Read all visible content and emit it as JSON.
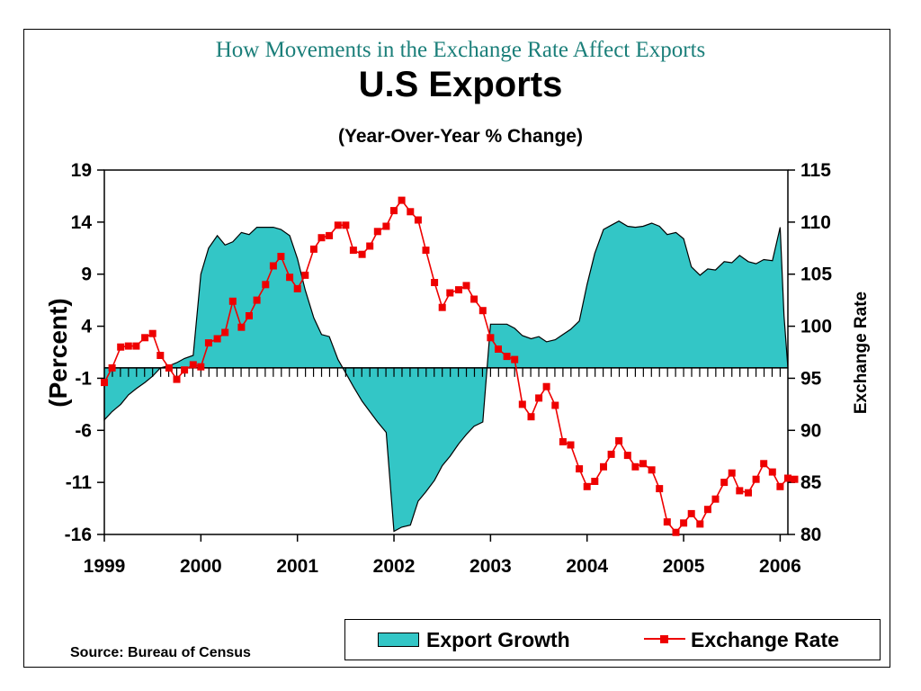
{
  "chart_data": {
    "type": "area+line",
    "supertitle": "How Movements in the Exchange Rate Affect Exports",
    "title": "U.S Exports",
    "subtitle": "(Year-Over-Year % Change)",
    "ylabel_left": "(Percent)",
    "ylabel_right": "Exchange Rate",
    "source": "Source: Bureau of Census",
    "x_ticks": [
      "1999",
      "2000",
      "2001",
      "2002",
      "2003",
      "2004",
      "2005",
      "2006"
    ],
    "xlim": [
      1999.0,
      2006.08
    ],
    "ylim_left": [
      -16,
      19
    ],
    "ylim_right": [
      80,
      115
    ],
    "y_ticks_left": [
      "19",
      "14",
      "9",
      "4",
      "-1",
      "-6",
      "-11",
      "-16"
    ],
    "y_ticks_right": [
      "115",
      "110",
      "105",
      "100",
      "95",
      "90",
      "85",
      "80"
    ],
    "grid": false,
    "legend_position": "bottom-right",
    "colors": {
      "export_fill": "#33c6c6",
      "exchange_line": "#ee0000",
      "axis": "#000000"
    },
    "series": [
      {
        "name": "Export Growth",
        "axis": "left",
        "kind": "area",
        "x": [
          1999.0,
          1999.08,
          1999.17,
          1999.25,
          1999.33,
          1999.42,
          1999.5,
          1999.58,
          1999.67,
          1999.75,
          1999.83,
          1999.92,
          2000.0,
          2000.08,
          2000.17,
          2000.25,
          2000.33,
          2000.42,
          2000.5,
          2000.58,
          2000.67,
          2000.75,
          2000.83,
          2000.92,
          2001.0,
          2001.08,
          2001.17,
          2001.25,
          2001.33,
          2001.42,
          2001.5,
          2001.58,
          2001.67,
          2001.75,
          2001.83,
          2001.92,
          2002.0,
          2002.08,
          2002.17,
          2002.25,
          2002.33,
          2002.42,
          2002.5,
          2002.58,
          2002.67,
          2002.75,
          2002.83,
          2002.92,
          2003.0,
          2003.08,
          2003.17,
          2003.25,
          2003.33,
          2003.42,
          2003.5,
          2003.58,
          2003.67,
          2003.75,
          2003.83,
          2003.92,
          2004.0,
          2004.08,
          2004.17,
          2004.25,
          2004.33,
          2004.42,
          2004.5,
          2004.58,
          2004.67,
          2004.75,
          2004.83,
          2004.92,
          2005.0,
          2005.08,
          2005.17,
          2005.25,
          2005.33,
          2005.42,
          2005.5,
          2005.58,
          2005.67,
          2005.75,
          2005.83,
          2005.92,
          2006.0,
          2006.04,
          2006.08
        ],
        "values": [
          -5.0,
          -4.2,
          -3.5,
          -2.6,
          -2.0,
          -1.4,
          -0.8,
          0.0,
          0.2,
          0.5,
          0.9,
          1.2,
          9.0,
          11.5,
          12.7,
          11.8,
          12.1,
          13.0,
          12.8,
          13.5,
          13.5,
          13.5,
          13.3,
          12.7,
          10.5,
          7.5,
          4.8,
          3.2,
          3.0,
          0.8,
          -0.5,
          -1.8,
          -3.2,
          -4.2,
          -5.2,
          -6.2,
          -15.7,
          -15.3,
          -15.1,
          -12.8,
          -11.9,
          -10.8,
          -9.4,
          -8.5,
          -7.3,
          -6.4,
          -5.6,
          -5.2,
          4.2,
          4.2,
          4.2,
          3.8,
          3.1,
          2.8,
          3.0,
          2.5,
          2.7,
          3.2,
          3.7,
          4.5,
          8.0,
          11.0,
          13.3,
          13.7,
          14.1,
          13.6,
          13.5,
          13.6,
          13.9,
          13.6,
          12.8,
          13.0,
          12.4,
          9.7,
          8.9,
          9.5,
          9.4,
          10.2,
          10.1,
          10.8,
          10.2,
          10.0,
          10.4,
          10.3,
          13.5,
          5.0,
          0.0
        ]
      },
      {
        "name": "Exchange Rate",
        "axis": "right",
        "kind": "line-markers",
        "x": [
          1999.0,
          1999.08,
          1999.17,
          1999.25,
          1999.33,
          1999.42,
          1999.5,
          1999.58,
          1999.67,
          1999.75,
          1999.83,
          1999.92,
          2000.0,
          2000.08,
          2000.17,
          2000.25,
          2000.33,
          2000.42,
          2000.5,
          2000.58,
          2000.67,
          2000.75,
          2000.83,
          2000.92,
          2001.0,
          2001.08,
          2001.17,
          2001.25,
          2001.33,
          2001.42,
          2001.5,
          2001.58,
          2001.67,
          2001.75,
          2001.83,
          2001.92,
          2002.0,
          2002.08,
          2002.17,
          2002.25,
          2002.33,
          2002.42,
          2002.5,
          2002.58,
          2002.67,
          2002.75,
          2002.83,
          2002.92,
          2003.0,
          2003.08,
          2003.17,
          2003.25,
          2003.33,
          2003.42,
          2003.5,
          2003.58,
          2003.67,
          2003.75,
          2003.83,
          2003.92,
          2004.0,
          2004.08,
          2004.17,
          2004.25,
          2004.33,
          2004.42,
          2004.5,
          2004.58,
          2004.67,
          2004.75,
          2004.83,
          2004.92,
          2005.0,
          2005.08,
          2005.17,
          2005.25,
          2005.33,
          2005.42,
          2005.5,
          2005.58,
          2005.67,
          2005.75,
          2005.83,
          2005.92,
          2006.0,
          2006.08
        ],
        "values": [
          94.6,
          96.0,
          98.0,
          98.1,
          98.1,
          98.9,
          99.3,
          97.2,
          96.0,
          94.9,
          95.8,
          96.3,
          96.1,
          98.4,
          98.8,
          99.4,
          102.4,
          99.9,
          101.0,
          102.5,
          104.0,
          105.8,
          106.7,
          104.7,
          103.6,
          104.9,
          107.4,
          108.5,
          108.7,
          109.7,
          109.7,
          107.3,
          106.9,
          107.7,
          109.1,
          109.6,
          111.1,
          112.1,
          111.0,
          110.2,
          107.3,
          104.2,
          101.8,
          103.2,
          103.5,
          103.9,
          102.6,
          101.5,
          98.9,
          97.8,
          97.1,
          96.8,
          92.5,
          91.3,
          93.1,
          94.2,
          92.4,
          88.9,
          88.6,
          86.3,
          84.6,
          85.1,
          86.5,
          87.7,
          89.0,
          87.6,
          86.5,
          86.8,
          86.2,
          84.4,
          81.2,
          80.2,
          81.1,
          82.0,
          81.0,
          82.4,
          83.4,
          85.0,
          85.9,
          84.2,
          84.0,
          85.3,
          86.8,
          86.0,
          84.6,
          85.4
        ]
      }
    ],
    "extra_series_note": "",
    "tail_rate": {
      "x": 2006.15,
      "value": 85.3
    }
  },
  "legend": {
    "export_label": "Export Growth",
    "exchange_label": "Exchange Rate"
  }
}
